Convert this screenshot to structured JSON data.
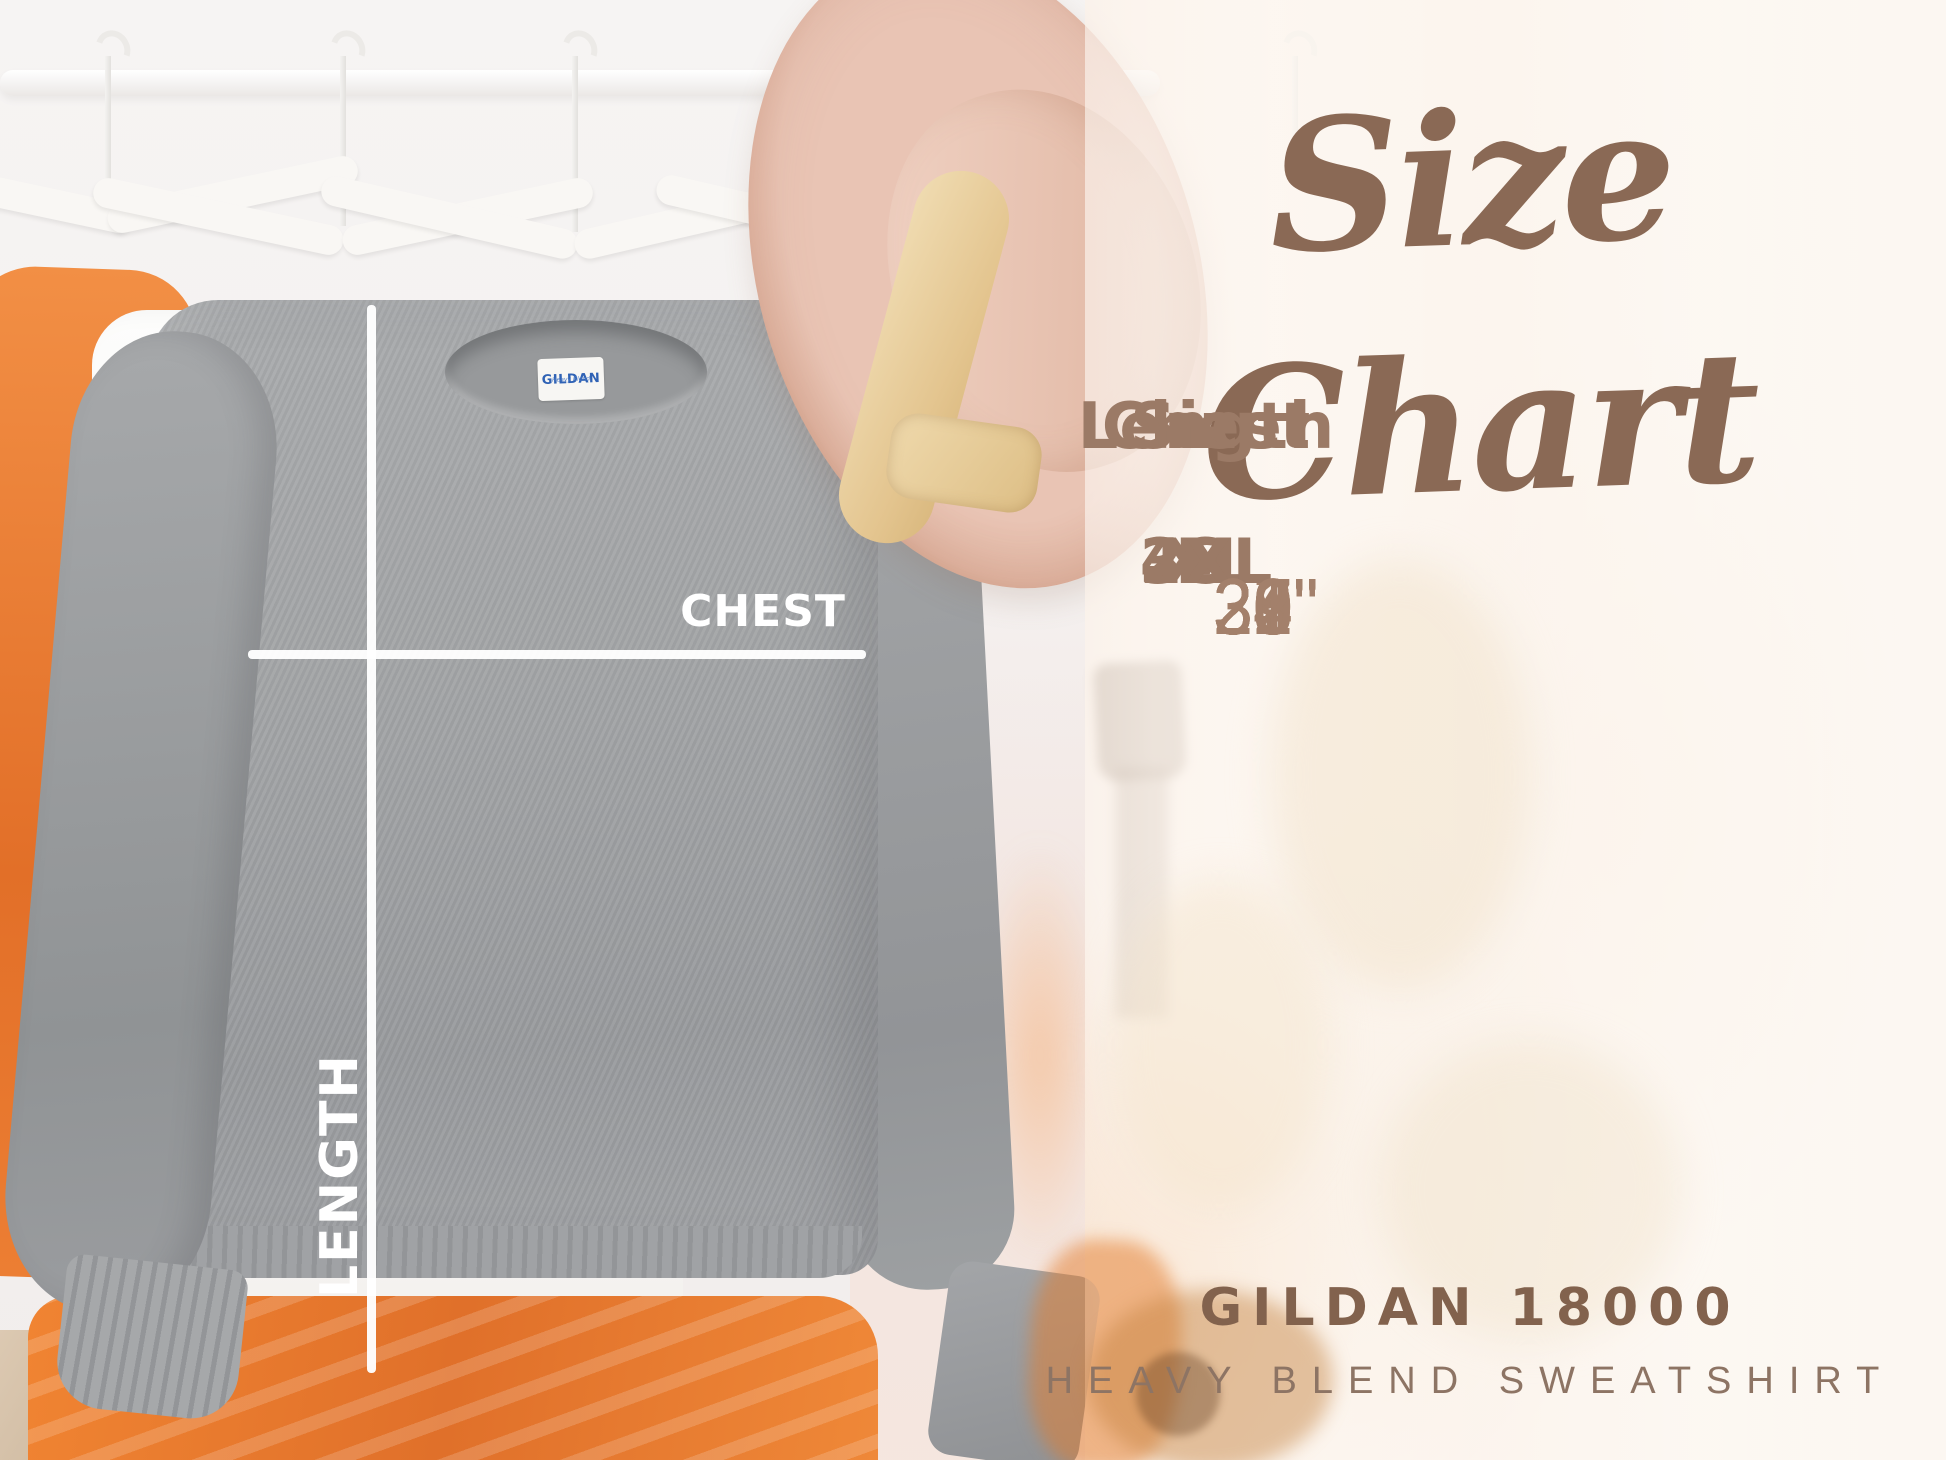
{
  "title": "Size Chart",
  "photo": {
    "chest_label": "CHEST",
    "length_label": "LENGTH",
    "neck_tag_brand": "GILDAN",
    "neck_tag_sub": "Heavy Blend"
  },
  "size_table": {
    "headers": [
      "Size",
      "Chest",
      "Length"
    ],
    "rows": [
      {
        "size": "S",
        "chest": "20\"",
        "length": "26\""
      },
      {
        "size": "M",
        "chest": "22\"",
        "length": "27\""
      },
      {
        "size": "L",
        "chest": "24\"",
        "length": "28\""
      },
      {
        "size": "XL",
        "chest": "26\"",
        "length": "29\""
      },
      {
        "size": "2XL",
        "chest": "28\"",
        "length": "30\""
      },
      {
        "size": "3XL",
        "chest": "30\"",
        "length": "31\""
      },
      {
        "size": "4XL",
        "chest": "32\"",
        "length": "32\""
      }
    ]
  },
  "footer": {
    "brand_line": "GILDAN 18000",
    "product_line": "HEAVY BLEND SWEATSHIRT"
  },
  "colors": {
    "title_brown": "#8a6955",
    "table_brown": "#9b7a66",
    "number_brown": "#a3806b",
    "footer_brown": "#82624d",
    "panel_cream": "#faf2ea",
    "hat_blush": "#e9c4b4",
    "hat_band_cream": "#e8cd99",
    "sweatshirt_gray": "#a2a4a6",
    "accent_orange": "#ee8135",
    "measure_line_white": "#ffffff",
    "tag_blue": "#2f62b5"
  },
  "chart_data": {
    "type": "table",
    "title": "Size Chart",
    "columns": [
      "Size",
      "Chest",
      "Length"
    ],
    "rows": [
      [
        "S",
        "20\"",
        "26\""
      ],
      [
        "M",
        "22\"",
        "27\""
      ],
      [
        "L",
        "24\"",
        "28\""
      ],
      [
        "XL",
        "26\"",
        "29\""
      ],
      [
        "2XL",
        "28\"",
        "30\""
      ],
      [
        "3XL",
        "30\"",
        "31\""
      ],
      [
        "4XL",
        "32\"",
        "32\""
      ]
    ],
    "units": "inches",
    "footnote": "GILDAN 18000 HEAVY BLEND SWEATSHIRT"
  }
}
